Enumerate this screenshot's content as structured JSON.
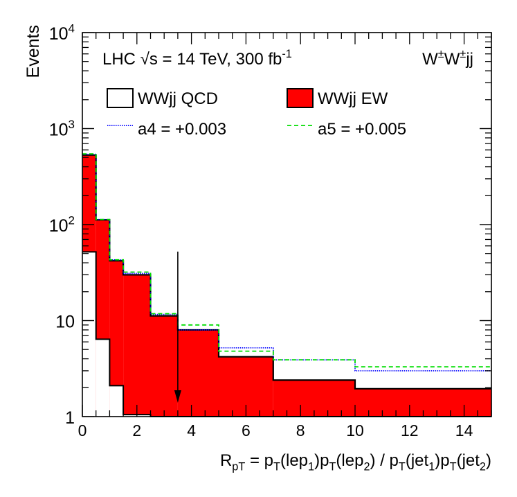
{
  "chart_data": {
    "type": "histogram",
    "scale_y": "log",
    "xlim": [
      0,
      15
    ],
    "ylim": [
      1,
      10000
    ],
    "bin_edges": [
      0,
      0.5,
      1,
      1.5,
      2.5,
      3.5,
      5,
      7,
      10,
      15
    ],
    "series": [
      {
        "name": "WWjj QCD",
        "style": "outline",
        "values": [
          52,
          6.4,
          2.1,
          1.05,
          1,
          1,
          1,
          1,
          1
        ]
      },
      {
        "name": "WWjj EW",
        "style": "filled",
        "color": "#ff0000",
        "values": [
          530,
          112,
          42,
          30,
          11.2,
          8.0,
          4.2,
          2.4,
          1.95
        ]
      },
      {
        "name": "a4 = +0.003",
        "style": "dotted",
        "color": "#0000ff",
        "values": [
          540,
          113,
          43,
          31,
          11.6,
          8.0,
          5.2,
          3.9,
          3.0
        ]
      },
      {
        "name": "a5 = +0.005",
        "style": "dashed",
        "color": "#00dd00",
        "values": [
          545,
          113,
          43,
          32,
          11.8,
          9.0,
          4.8,
          3.9,
          3.3
        ]
      }
    ],
    "cut_arrow_x": 3.5,
    "x_ticks": [
      0,
      2,
      4,
      6,
      8,
      10,
      12,
      14
    ],
    "xlabel": {
      "parts": [
        {
          "t": "R",
          "s": "n"
        },
        {
          "t": "pT",
          "s": "sub"
        },
        {
          "t": " = p",
          "s": "n"
        },
        {
          "t": "T",
          "s": "sub"
        },
        {
          "t": "(lep",
          "s": "n"
        },
        {
          "t": "1",
          "s": "sub"
        },
        {
          "t": ")p",
          "s": "n"
        },
        {
          "t": "T",
          "s": "sub"
        },
        {
          "t": "(lep",
          "s": "n"
        },
        {
          "t": "2",
          "s": "sub"
        },
        {
          "t": ") / p",
          "s": "n"
        },
        {
          "t": "T",
          "s": "sub"
        },
        {
          "t": "(jet",
          "s": "n"
        },
        {
          "t": "1",
          "s": "sub"
        },
        {
          "t": ")p",
          "s": "n"
        },
        {
          "t": "T",
          "s": "sub"
        },
        {
          "t": "(jet",
          "s": "n"
        },
        {
          "t": "2",
          "s": "sub"
        },
        {
          "t": ")",
          "s": "n"
        }
      ]
    },
    "ylabel": "Events",
    "y_tick_labels": [
      {
        "value": 1,
        "parts": [
          {
            "t": "1",
            "s": "n"
          }
        ]
      },
      {
        "value": 10,
        "parts": [
          {
            "t": "10",
            "s": "n"
          }
        ]
      },
      {
        "value": 100,
        "parts": [
          {
            "t": "10",
            "s": "n"
          },
          {
            "t": "2",
            "s": "sup"
          }
        ]
      },
      {
        "value": 1000,
        "parts": [
          {
            "t": "10",
            "s": "n"
          },
          {
            "t": "3",
            "s": "sup"
          }
        ]
      },
      {
        "value": 10000,
        "parts": [
          {
            "t": "10",
            "s": "n"
          },
          {
            "t": "4",
            "s": "sup"
          }
        ]
      }
    ],
    "annotation_left": {
      "parts": [
        {
          "t": "LHC ",
          "s": "n"
        },
        {
          "t": "√",
          "s": "n"
        },
        {
          "t": "s",
          "s": "n"
        },
        {
          "t": " = 14 TeV, 300 fb",
          "s": "n"
        },
        {
          "t": "-1",
          "s": "sup"
        }
      ]
    },
    "annotation_right": {
      "parts": [
        {
          "t": "W",
          "s": "n"
        },
        {
          "t": "±",
          "s": "sup"
        },
        {
          "t": "W",
          "s": "n"
        },
        {
          "t": "±",
          "s": "sup"
        },
        {
          "t": "jj",
          "s": "n"
        }
      ]
    },
    "legend_position": "top"
  }
}
